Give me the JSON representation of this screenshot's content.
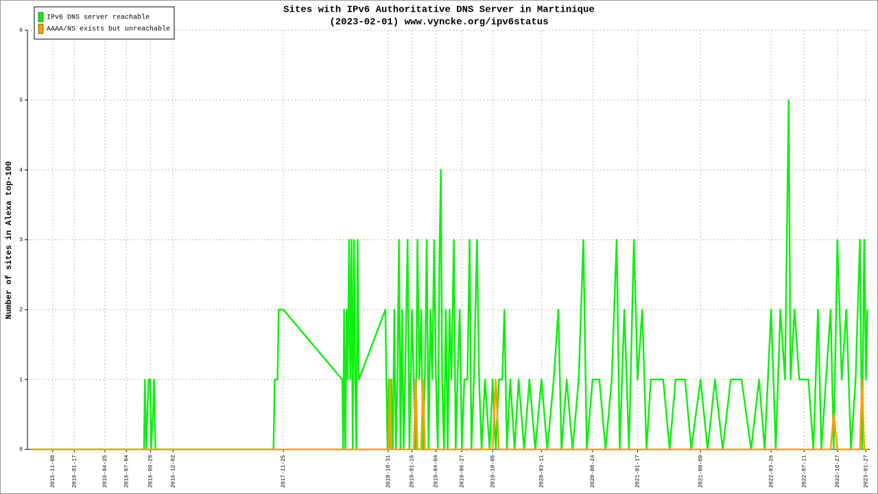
{
  "chart_data": {
    "type": "line",
    "title": "Sites with IPv6 Authoritative DNS Server in Martinique",
    "subtitle": "(2023-02-01) www.vyncke.org/ipv6status",
    "y_label": "Number of sites in Alexa top-100",
    "legend": "top-left",
    "grid": true,
    "xlim": [
      "2015-08-18",
      "2023-02-09"
    ],
    "ylim": [
      0,
      6
    ],
    "yticks": [
      0,
      1,
      2,
      3,
      4,
      5,
      6
    ],
    "xticks": [
      "2015-11-08",
      "2016-01-17",
      "2016-04-25",
      "2016-07-04",
      "2016-09-20",
      "2016-12-02",
      "2017-11-25",
      "2018-10-31",
      "2019-01-16",
      "2019-04-04",
      "2019-06-27",
      "2019-10-05",
      "2020-03-11",
      "2020-08-24",
      "2021-01-17",
      "2021-08-09",
      "2022-03-26",
      "2022-07-11",
      "2022-10-27",
      "2023-01-27"
    ],
    "x": [
      "2015-08-29",
      "2016-08-30",
      "2016-09-02",
      "2016-09-06",
      "2016-09-10",
      "2016-09-14",
      "2016-09-19",
      "2016-09-22",
      "2016-09-28",
      "2016-10-02",
      "2016-10-06",
      "2017-10-24",
      "2017-10-28",
      "2017-11-06",
      "2017-11-10",
      "2017-11-25",
      "2018-06-04",
      "2018-06-07",
      "2018-06-10",
      "2018-06-14",
      "2018-06-18",
      "2018-06-22",
      "2018-06-26",
      "2018-06-30",
      "2018-07-04",
      "2018-07-08",
      "2018-07-12",
      "2018-07-16",
      "2018-07-20",
      "2018-07-24",
      "2018-07-28",
      "2018-10-22",
      "2018-10-25",
      "2018-10-29",
      "2018-11-02",
      "2018-11-06",
      "2018-11-10",
      "2018-11-15",
      "2018-11-20",
      "2018-11-25",
      "2018-11-30",
      "2018-12-05",
      "2018-12-10",
      "2018-12-15",
      "2018-12-20",
      "2018-12-25",
      "2019-01-02",
      "2019-01-08",
      "2019-01-16",
      "2019-01-22",
      "2019-01-28",
      "2019-02-03",
      "2019-02-09",
      "2019-02-15",
      "2019-02-21",
      "2019-02-27",
      "2019-03-05",
      "2019-03-11",
      "2019-03-17",
      "2019-03-23",
      "2019-03-29",
      "2019-04-04",
      "2019-04-10",
      "2019-04-16",
      "2019-04-20",
      "2019-04-24",
      "2019-04-30",
      "2019-05-06",
      "2019-05-12",
      "2019-05-18",
      "2019-05-24",
      "2019-06-01",
      "2019-06-07",
      "2019-06-13",
      "2019-06-20",
      "2019-06-27",
      "2019-07-05",
      "2019-07-15",
      "2019-07-22",
      "2019-07-28",
      "2019-08-05",
      "2019-08-15",
      "2019-08-22",
      "2019-08-30",
      "2019-09-10",
      "2019-09-25",
      "2019-10-05",
      "2019-10-15",
      "2019-10-25",
      "2019-11-05",
      "2019-11-12",
      "2019-11-20",
      "2019-12-01",
      "2019-12-15",
      "2019-12-28",
      "2020-01-15",
      "2020-02-01",
      "2020-02-20",
      "2020-03-11",
      "2020-03-30",
      "2020-04-20",
      "2020-05-05",
      "2020-05-15",
      "2020-06-01",
      "2020-06-20",
      "2020-07-10",
      "2020-07-25",
      "2020-08-05",
      "2020-08-24",
      "2020-09-15",
      "2020-10-05",
      "2020-10-25",
      "2020-11-10",
      "2020-11-20",
      "2020-12-05",
      "2020-12-20",
      "2021-01-05",
      "2021-01-17",
      "2021-02-01",
      "2021-02-15",
      "2021-03-01",
      "2021-04-10",
      "2021-05-01",
      "2021-05-20",
      "2021-06-20",
      "2021-07-10",
      "2021-08-09",
      "2021-09-01",
      "2021-09-25",
      "2021-10-20",
      "2021-11-15",
      "2021-12-20",
      "2022-01-20",
      "2022-02-15",
      "2022-03-05",
      "2022-03-26",
      "2022-04-10",
      "2022-04-25",
      "2022-05-10",
      "2022-05-22",
      "2022-05-28",
      "2022-06-10",
      "2022-06-25",
      "2022-07-11",
      "2022-07-25",
      "2022-08-10",
      "2022-08-25",
      "2022-09-05",
      "2022-09-20",
      "2022-10-05",
      "2022-10-15",
      "2022-10-27",
      "2022-11-10",
      "2022-11-25",
      "2022-12-10",
      "2022-12-25",
      "2023-01-08",
      "2023-01-15",
      "2023-01-22",
      "2023-01-28",
      "2023-02-01"
    ],
    "series": [
      {
        "name": "IPv6 DNS server reachable",
        "color": "#11ee11",
        "values": [
          0,
          0,
          1,
          0,
          0.5,
          1,
          1,
          0,
          0.5,
          1,
          0,
          0,
          1,
          1,
          2,
          2,
          1,
          0,
          2,
          0,
          2,
          1,
          3,
          1,
          3,
          0,
          3,
          1,
          0,
          3,
          1,
          2,
          1,
          0,
          1,
          0,
          1,
          0,
          2,
          0,
          1,
          3,
          0,
          2,
          0,
          1,
          3,
          0,
          2,
          1,
          0,
          3,
          1,
          2,
          0,
          1,
          3,
          0,
          2,
          1,
          3,
          1,
          0,
          3,
          4,
          1,
          0,
          2,
          0,
          2,
          1,
          3,
          0,
          1,
          2,
          0,
          1,
          1,
          3,
          0,
          1,
          3,
          1,
          0,
          1,
          0,
          1,
          0,
          1,
          1,
          2,
          0,
          1,
          0,
          1,
          0,
          1,
          0,
          1,
          0,
          1,
          2,
          0,
          1,
          0,
          1,
          3,
          0,
          1,
          1,
          0,
          1,
          3,
          0,
          2,
          0,
          3,
          1,
          2,
          0,
          1,
          1,
          0,
          1,
          1,
          0,
          1,
          0,
          1,
          0,
          1,
          1,
          0,
          1,
          0,
          2,
          0,
          2,
          1,
          5,
          1,
          2,
          1,
          1,
          1,
          0,
          2,
          0,
          1,
          2,
          0,
          3,
          1,
          2,
          0,
          1,
          3,
          0,
          3,
          1,
          2
        ]
      },
      {
        "name": "AAAA/NS exists but unreachable",
        "color": "#ffa000",
        "values": [
          0,
          0,
          0,
          0,
          0,
          0,
          0,
          0,
          0,
          0,
          0,
          0,
          0,
          0,
          0,
          0,
          0,
          0,
          0,
          0,
          0,
          0,
          0,
          0,
          0,
          0,
          0,
          0,
          0,
          0,
          0,
          0,
          0,
          0,
          0,
          1,
          0,
          0,
          0,
          0,
          0,
          0,
          0,
          0,
          0,
          0,
          0,
          0,
          0,
          0,
          1,
          0,
          0,
          0,
          1,
          0,
          0,
          0,
          0,
          0,
          0,
          0,
          0,
          0,
          0,
          0,
          0,
          0,
          0,
          0,
          0,
          0,
          0,
          0,
          0,
          0,
          0,
          0,
          0,
          0,
          0,
          0,
          0,
          0,
          0,
          0,
          0,
          1,
          0,
          0,
          0,
          0,
          0,
          0,
          0,
          0,
          0,
          0,
          0,
          0,
          0,
          0,
          0,
          0,
          0,
          0,
          0,
          0,
          0,
          0,
          0,
          0,
          0,
          0,
          0,
          0,
          0,
          0,
          0,
          0,
          0,
          0,
          0,
          0,
          0,
          0,
          0,
          0,
          0,
          0,
          0,
          0,
          0,
          0,
          0,
          0,
          0,
          0,
          0,
          0,
          0,
          0,
          0,
          0,
          0,
          0,
          0,
          0,
          0,
          0,
          0.5,
          0,
          0,
          0,
          0,
          0,
          0,
          1,
          0,
          0,
          0
        ]
      }
    ]
  }
}
